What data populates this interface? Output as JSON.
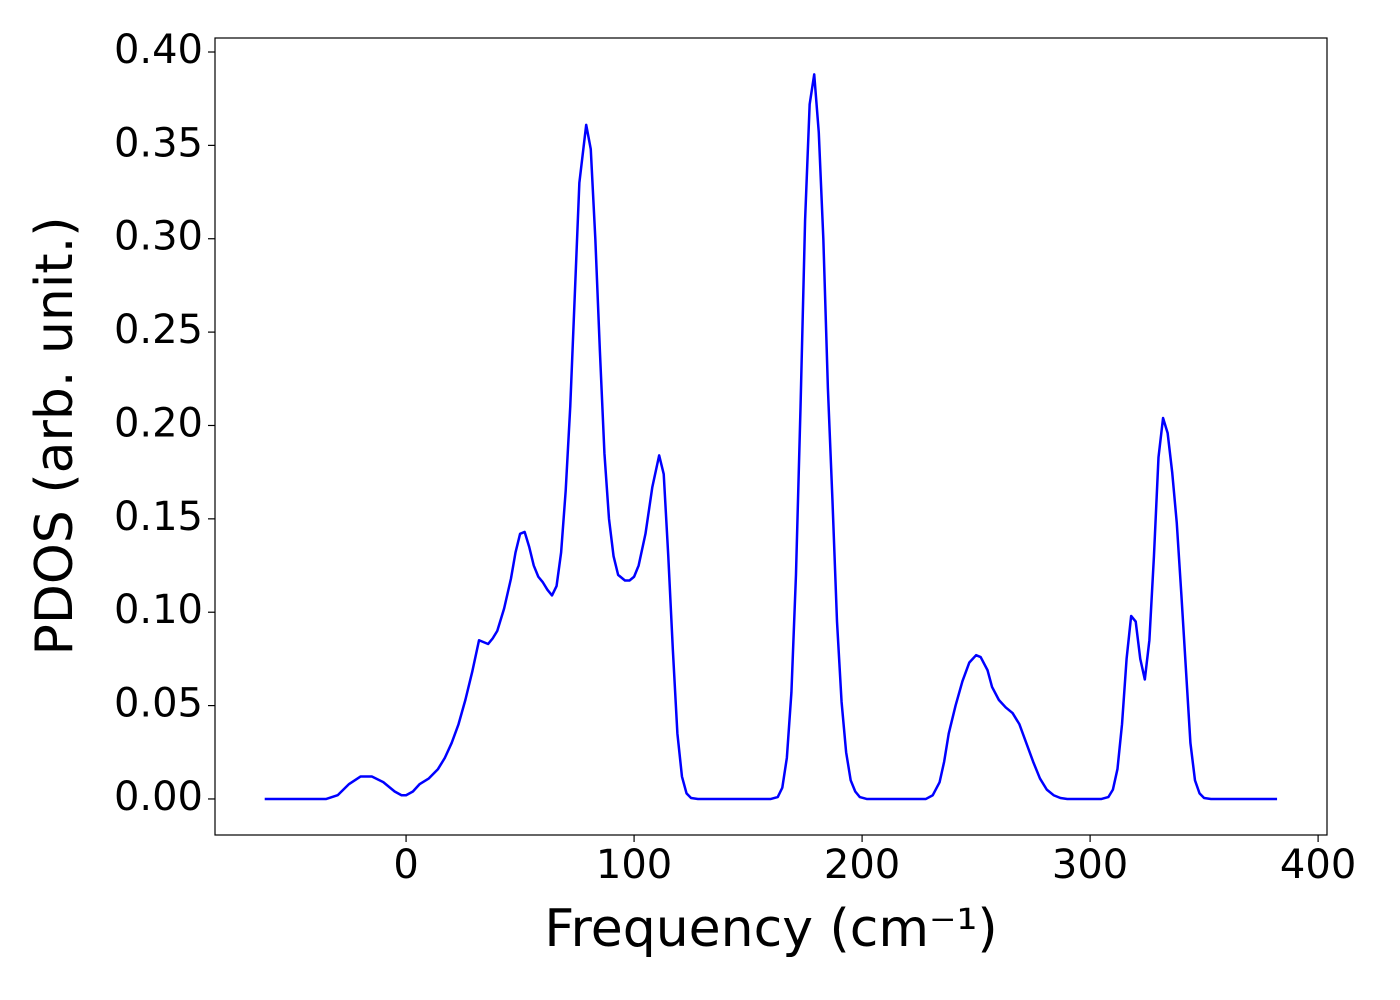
{
  "chart_data": {
    "type": "line",
    "xlabel": "Frequency (cm⁻¹)",
    "ylabel": "PDOS (arb. unit.)",
    "color": "#0000ff",
    "x": [
      -62,
      -50,
      -40,
      -35,
      -30,
      -25,
      -20,
      -15,
      -10,
      -5,
      -2,
      0,
      3,
      6,
      10,
      14,
      17,
      20,
      23,
      26,
      29,
      32,
      36,
      38,
      40,
      43,
      46,
      48,
      50,
      52,
      54,
      56,
      58,
      60,
      62,
      64,
      66,
      68,
      70,
      72,
      74,
      76,
      79,
      81,
      83,
      85,
      87,
      89,
      91,
      93,
      96,
      98,
      100,
      102,
      105,
      108,
      111,
      113,
      115,
      117,
      119,
      121,
      123,
      125,
      128,
      140,
      150,
      160,
      163,
      165,
      167,
      169,
      171,
      173,
      175,
      177,
      179,
      181,
      183,
      185,
      187,
      189,
      191,
      193,
      195,
      197,
      199,
      202,
      215,
      228,
      231,
      234,
      236,
      238,
      241,
      244,
      247,
      250,
      252,
      255,
      257,
      260,
      263,
      266,
      269,
      272,
      275,
      278,
      281,
      284,
      287,
      290,
      305,
      308,
      310,
      312,
      314,
      316,
      318,
      320,
      322,
      324,
      326,
      328,
      330,
      332,
      334,
      336,
      338,
      340,
      342,
      344,
      346,
      348,
      350,
      353,
      370,
      382
    ],
    "values": [
      0,
      0,
      0,
      0,
      0.002,
      0.008,
      0.012,
      0.012,
      0.009,
      0.004,
      0.002,
      0.002,
      0.004,
      0.008,
      0.011,
      0.016,
      0.022,
      0.03,
      0.04,
      0.053,
      0.068,
      0.085,
      0.083,
      0.086,
      0.09,
      0.102,
      0.118,
      0.132,
      0.142,
      0.143,
      0.135,
      0.125,
      0.119,
      0.116,
      0.112,
      0.109,
      0.114,
      0.132,
      0.165,
      0.21,
      0.27,
      0.33,
      0.361,
      0.348,
      0.3,
      0.24,
      0.185,
      0.15,
      0.13,
      0.12,
      0.117,
      0.117,
      0.119,
      0.125,
      0.142,
      0.167,
      0.184,
      0.174,
      0.13,
      0.08,
      0.035,
      0.012,
      0.003,
      0.0005,
      0,
      0,
      0,
      0,
      0.001,
      0.006,
      0.022,
      0.057,
      0.12,
      0.21,
      0.31,
      0.372,
      0.388,
      0.357,
      0.3,
      0.22,
      0.16,
      0.095,
      0.052,
      0.025,
      0.01,
      0.004,
      0.001,
      0,
      0,
      0,
      0.002,
      0.009,
      0.02,
      0.035,
      0.05,
      0.063,
      0.073,
      0.077,
      0.076,
      0.069,
      0.06,
      0.053,
      0.049,
      0.046,
      0.04,
      0.03,
      0.02,
      0.011,
      0.005,
      0.002,
      0.0005,
      0,
      0,
      0.001,
      0.005,
      0.016,
      0.04,
      0.075,
      0.098,
      0.095,
      0.075,
      0.064,
      0.085,
      0.13,
      0.183,
      0.204,
      0.196,
      0.175,
      0.148,
      0.11,
      0.07,
      0.03,
      0.01,
      0.003,
      0.0005,
      0,
      0,
      0
    ],
    "xlim": [
      -83.8,
      403.9
    ],
    "ylim": [
      -0.0193,
      0.4075
    ],
    "xticks": [
      0,
      100,
      200,
      300,
      400
    ],
    "yticks": [
      {
        "value": 0,
        "label": "0.00"
      },
      {
        "value": 0.05,
        "label": "0.05"
      },
      {
        "value": 0.1,
        "label": "0.10"
      },
      {
        "value": 0.15,
        "label": "0.15"
      },
      {
        "value": 0.2,
        "label": "0.20"
      },
      {
        "value": 0.25,
        "label": "0.25"
      },
      {
        "value": 0.3,
        "label": "0.30"
      },
      {
        "value": 0.35,
        "label": "0.35"
      },
      {
        "value": 0.4,
        "label": "0.40"
      }
    ]
  }
}
